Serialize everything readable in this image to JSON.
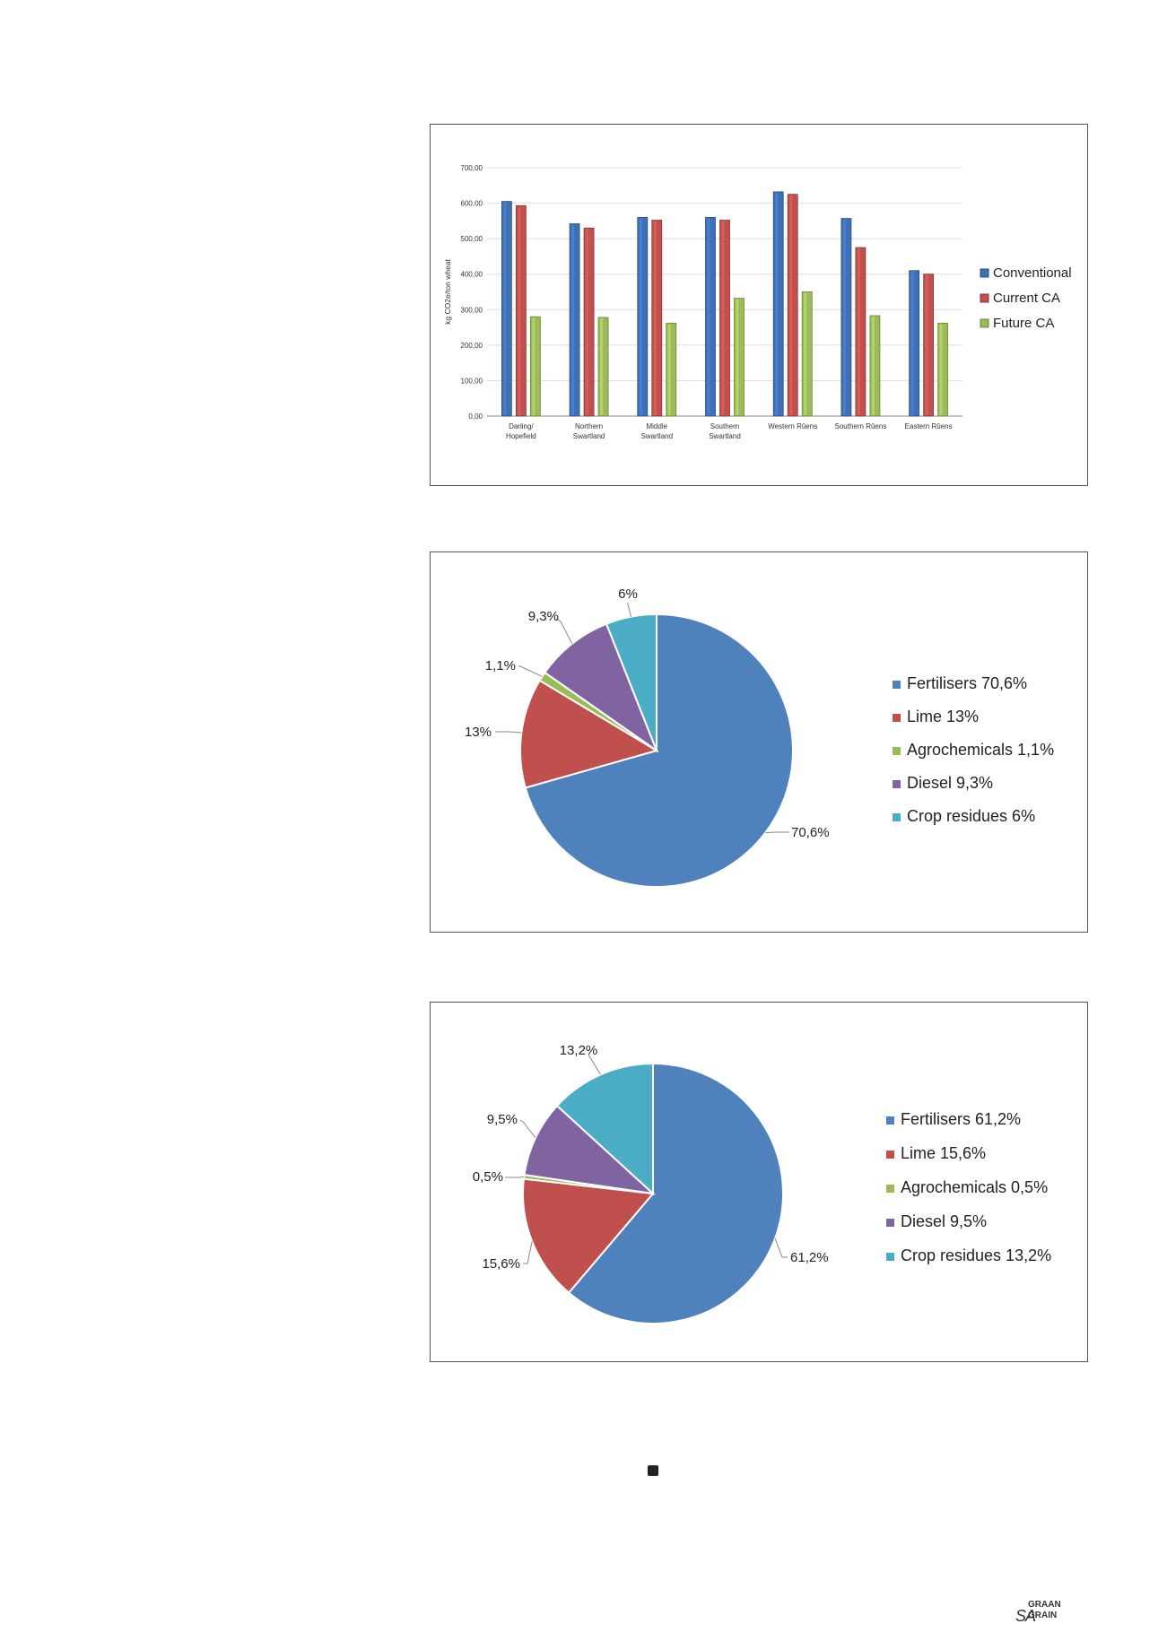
{
  "chart_data": [
    {
      "type": "bar",
      "ylabel": "kg CO2e/ton wheat",
      "ylim": [
        0,
        700
      ],
      "yticks": [
        "0,00",
        "100,00",
        "200,00",
        "300,00",
        "400,00",
        "500,00",
        "600,00",
        "700,00"
      ],
      "categories": [
        [
          "Darling/",
          "Hopefield"
        ],
        [
          "Northern",
          "Swartland"
        ],
        [
          "Middle",
          "Swartland"
        ],
        [
          "Southern",
          "Swartland"
        ],
        [
          "Western Rûens"
        ],
        [
          "Southern Rûens"
        ],
        [
          "Eastern Rûens"
        ]
      ],
      "series": [
        {
          "name": "Conventional",
          "color": "#3f6fb5",
          "values": [
            605,
            542,
            560,
            560,
            632,
            557,
            410
          ]
        },
        {
          "name": "Current CA",
          "color": "#c0504d",
          "values": [
            593,
            530,
            552,
            552,
            625,
            475,
            400
          ]
        },
        {
          "name": "Future CA",
          "color": "#9bbb59",
          "values": [
            280,
            278,
            262,
            332,
            350,
            283,
            262
          ]
        }
      ],
      "grid": true,
      "legend": "right"
    },
    {
      "type": "pie",
      "slices": [
        {
          "name": "Fertilisers",
          "value": 70.6,
          "label": "70,6%",
          "legend": "Fertilisers  70,6%",
          "color": "#4f81bd"
        },
        {
          "name": "Lime",
          "value": 13,
          "label": "13%",
          "legend": "Lime  13%",
          "color": "#c0504d"
        },
        {
          "name": "Agrochemicals",
          "value": 1.1,
          "label": "1,1%",
          "legend": "Agrochemicals  1,1%",
          "color": "#9bbb59"
        },
        {
          "name": "Diesel",
          "value": 9.3,
          "label": "9,3%",
          "legend": "Diesel  9,3%",
          "color": "#8064a2"
        },
        {
          "name": "Crop residues",
          "value": 6,
          "label": "6%",
          "legend": "Crop residues  6%",
          "color": "#4bacc6"
        }
      ],
      "legend": "right"
    },
    {
      "type": "pie",
      "slices": [
        {
          "name": "Fertilisers",
          "value": 61.2,
          "label": "61,2%",
          "legend": "Fertilisers   61,2%",
          "color": "#4f81bd"
        },
        {
          "name": "Lime",
          "value": 15.6,
          "label": "15,6%",
          "legend": "Lime  15,6%",
          "color": "#c0504d"
        },
        {
          "name": "Agrochemicals",
          "value": 0.5,
          "label": "0,5%",
          "legend": "Agrochemicals  0,5%",
          "color": "#9bbb59"
        },
        {
          "name": "Diesel",
          "value": 9.5,
          "label": "9,5%",
          "legend": "Diesel  9,5%",
          "color": "#8064a2"
        },
        {
          "name": "Crop residues",
          "value": 13.2,
          "label": "13,2%",
          "legend": "Crop residues  13,2%",
          "color": "#4bacc6"
        }
      ],
      "legend": "right"
    }
  ],
  "logo": {
    "sa": "SA",
    "graan": "GRAAN",
    "grain": "GRAIN"
  }
}
